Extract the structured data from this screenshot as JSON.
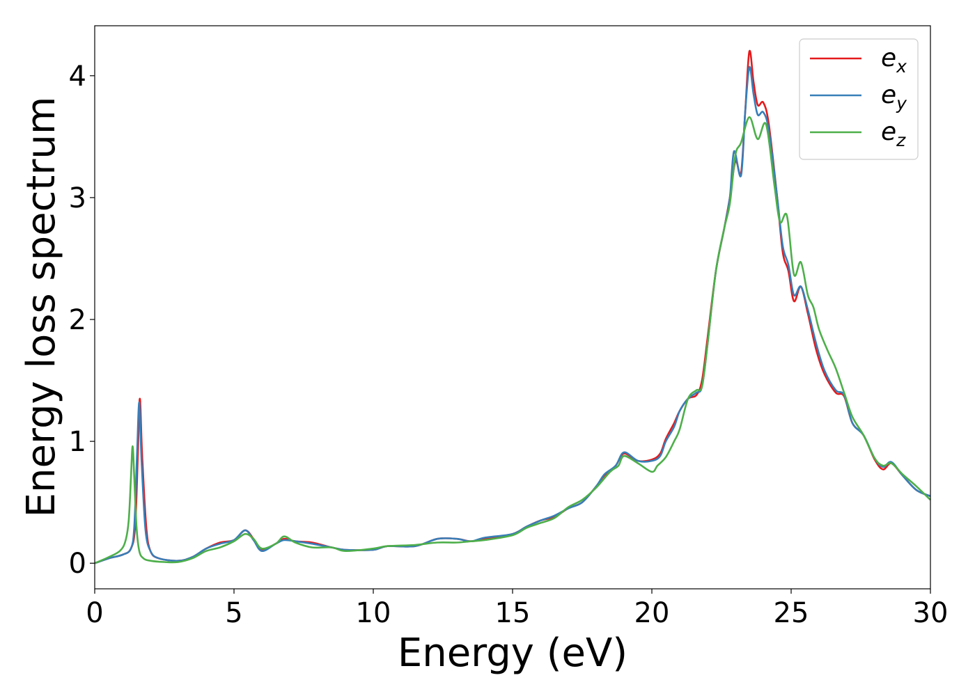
{
  "chart_data": {
    "type": "line",
    "title": "",
    "xlabel": "Energy (eV)",
    "ylabel": "Energy loss spectrum",
    "xlim": [
      0,
      30
    ],
    "ylim": [
      -0.21,
      4.41
    ],
    "xticks": [
      0,
      5,
      10,
      15,
      20,
      25,
      30
    ],
    "xtick_labels": [
      "0",
      "5",
      "10",
      "15",
      "20",
      "25",
      "30"
    ],
    "yticks": [
      0,
      1,
      2,
      3,
      4
    ],
    "ytick_labels": [
      "0",
      "1",
      "2",
      "3",
      "4"
    ],
    "grid": false,
    "legend_position": "top-right",
    "series": [
      {
        "name": "e_x",
        "label_base": "e",
        "label_sub": "x",
        "color": "#e41a1c",
        "x": [
          0,
          0.5,
          1.0,
          1.3,
          1.45,
          1.55,
          1.62,
          1.7,
          1.85,
          2.0,
          2.3,
          3.0,
          3.5,
          4.0,
          4.5,
          5.0,
          5.4,
          5.7,
          6.0,
          6.5,
          6.8,
          7.2,
          7.8,
          8.5,
          9.0,
          10.0,
          10.5,
          11.5,
          12.3,
          13.0,
          13.5,
          14.0,
          15.0,
          15.5,
          16.0,
          16.5,
          17.0,
          17.5,
          18.0,
          18.3,
          18.7,
          19.0,
          19.5,
          20.0,
          20.3,
          20.5,
          20.8,
          21.0,
          21.3,
          21.6,
          21.8,
          22.0,
          22.3,
          22.6,
          22.8,
          23.0,
          23.2,
          23.35,
          23.5,
          23.65,
          23.8,
          24.0,
          24.2,
          24.5,
          24.7,
          24.9,
          25.1,
          25.35,
          25.6,
          25.9,
          26.2,
          26.6,
          26.9,
          27.2,
          27.6,
          28.0,
          28.3,
          28.6,
          29.0,
          29.5,
          30.0
        ],
        "y": [
          0,
          0.04,
          0.07,
          0.12,
          0.3,
          0.9,
          1.35,
          0.9,
          0.3,
          0.1,
          0.04,
          0.02,
          0.05,
          0.12,
          0.17,
          0.19,
          0.27,
          0.2,
          0.11,
          0.16,
          0.2,
          0.18,
          0.17,
          0.13,
          0.11,
          0.11,
          0.14,
          0.14,
          0.2,
          0.2,
          0.18,
          0.2,
          0.24,
          0.3,
          0.35,
          0.38,
          0.45,
          0.5,
          0.63,
          0.72,
          0.8,
          0.9,
          0.84,
          0.85,
          0.9,
          1.02,
          1.15,
          1.25,
          1.35,
          1.38,
          1.5,
          1.85,
          2.4,
          2.75,
          3.0,
          3.3,
          3.2,
          3.7,
          4.2,
          3.95,
          3.76,
          3.78,
          3.6,
          3.0,
          2.55,
          2.4,
          2.15,
          2.27,
          2.05,
          1.75,
          1.55,
          1.4,
          1.37,
          1.15,
          1.05,
          0.85,
          0.77,
          0.82,
          0.72,
          0.6,
          0.55
        ]
      },
      {
        "name": "e_y",
        "label_base": "e",
        "label_sub": "y",
        "color": "#377eb8",
        "x": [
          0,
          0.5,
          1.0,
          1.3,
          1.42,
          1.52,
          1.6,
          1.68,
          1.82,
          2.0,
          2.3,
          3.0,
          3.5,
          4.0,
          4.5,
          5.0,
          5.4,
          5.7,
          6.0,
          6.5,
          6.8,
          7.2,
          7.8,
          8.5,
          9.0,
          10.0,
          10.5,
          11.5,
          12.3,
          13.0,
          13.5,
          14.0,
          15.0,
          15.5,
          16.0,
          16.5,
          17.0,
          17.5,
          18.0,
          18.3,
          18.7,
          19.0,
          19.5,
          20.0,
          20.3,
          20.5,
          20.8,
          21.0,
          21.3,
          21.6,
          21.8,
          22.0,
          22.3,
          22.6,
          22.8,
          22.95,
          23.2,
          23.35,
          23.5,
          23.65,
          23.8,
          24.0,
          24.2,
          24.5,
          24.7,
          24.9,
          25.1,
          25.35,
          25.6,
          25.9,
          26.2,
          26.6,
          26.9,
          27.2,
          27.6,
          28.0,
          28.3,
          28.6,
          29.0,
          29.5,
          30.0
        ],
        "y": [
          0,
          0.04,
          0.07,
          0.12,
          0.3,
          0.9,
          1.32,
          0.85,
          0.28,
          0.1,
          0.04,
          0.02,
          0.05,
          0.12,
          0.16,
          0.19,
          0.27,
          0.19,
          0.1,
          0.16,
          0.19,
          0.18,
          0.16,
          0.13,
          0.11,
          0.11,
          0.14,
          0.14,
          0.2,
          0.2,
          0.18,
          0.21,
          0.24,
          0.3,
          0.35,
          0.39,
          0.45,
          0.5,
          0.63,
          0.73,
          0.8,
          0.91,
          0.84,
          0.84,
          0.88,
          1.0,
          1.12,
          1.25,
          1.35,
          1.4,
          1.45,
          1.8,
          2.4,
          2.75,
          3.0,
          3.38,
          3.18,
          3.7,
          4.07,
          3.85,
          3.68,
          3.7,
          3.55,
          3.0,
          2.6,
          2.45,
          2.2,
          2.27,
          2.08,
          1.8,
          1.58,
          1.42,
          1.38,
          1.15,
          1.05,
          0.86,
          0.79,
          0.83,
          0.72,
          0.6,
          0.55
        ]
      },
      {
        "name": "e_z",
        "label_base": "e",
        "label_sub": "z",
        "color": "#4daf4a",
        "x": [
          0,
          0.5,
          0.9,
          1.1,
          1.22,
          1.3,
          1.36,
          1.42,
          1.5,
          1.6,
          1.75,
          2.0,
          2.5,
          3.0,
          3.5,
          4.0,
          4.5,
          5.0,
          5.4,
          5.7,
          6.0,
          6.5,
          6.8,
          7.2,
          7.8,
          8.5,
          9.0,
          10.0,
          10.5,
          11.5,
          12.3,
          13.0,
          13.5,
          14.0,
          15.0,
          15.5,
          16.0,
          16.5,
          17.0,
          17.5,
          18.0,
          18.5,
          18.8,
          19.0,
          19.5,
          20.0,
          20.2,
          20.5,
          20.8,
          21.0,
          21.3,
          21.6,
          21.8,
          22.0,
          22.3,
          22.6,
          22.8,
          23.0,
          23.2,
          23.5,
          23.8,
          24.1,
          24.4,
          24.6,
          24.85,
          25.1,
          25.35,
          25.6,
          25.8,
          26.0,
          26.3,
          26.6,
          26.9,
          27.2,
          27.6,
          28.0,
          28.3,
          28.6,
          29.0,
          29.5,
          30.0
        ],
        "y": [
          0,
          0.05,
          0.1,
          0.18,
          0.35,
          0.7,
          0.96,
          0.7,
          0.3,
          0.1,
          0.04,
          0.02,
          0.01,
          0.01,
          0.04,
          0.1,
          0.13,
          0.18,
          0.24,
          0.2,
          0.12,
          0.16,
          0.22,
          0.17,
          0.13,
          0.13,
          0.1,
          0.12,
          0.14,
          0.15,
          0.17,
          0.17,
          0.18,
          0.19,
          0.23,
          0.29,
          0.33,
          0.37,
          0.46,
          0.52,
          0.62,
          0.75,
          0.8,
          0.88,
          0.82,
          0.75,
          0.8,
          0.87,
          1.0,
          1.1,
          1.35,
          1.42,
          1.45,
          1.8,
          2.4,
          2.75,
          2.95,
          3.35,
          3.45,
          3.66,
          3.48,
          3.6,
          3.1,
          2.8,
          2.85,
          2.37,
          2.47,
          2.2,
          2.1,
          1.92,
          1.75,
          1.6,
          1.4,
          1.2,
          1.05,
          0.86,
          0.8,
          0.82,
          0.73,
          0.63,
          0.52
        ]
      }
    ]
  }
}
